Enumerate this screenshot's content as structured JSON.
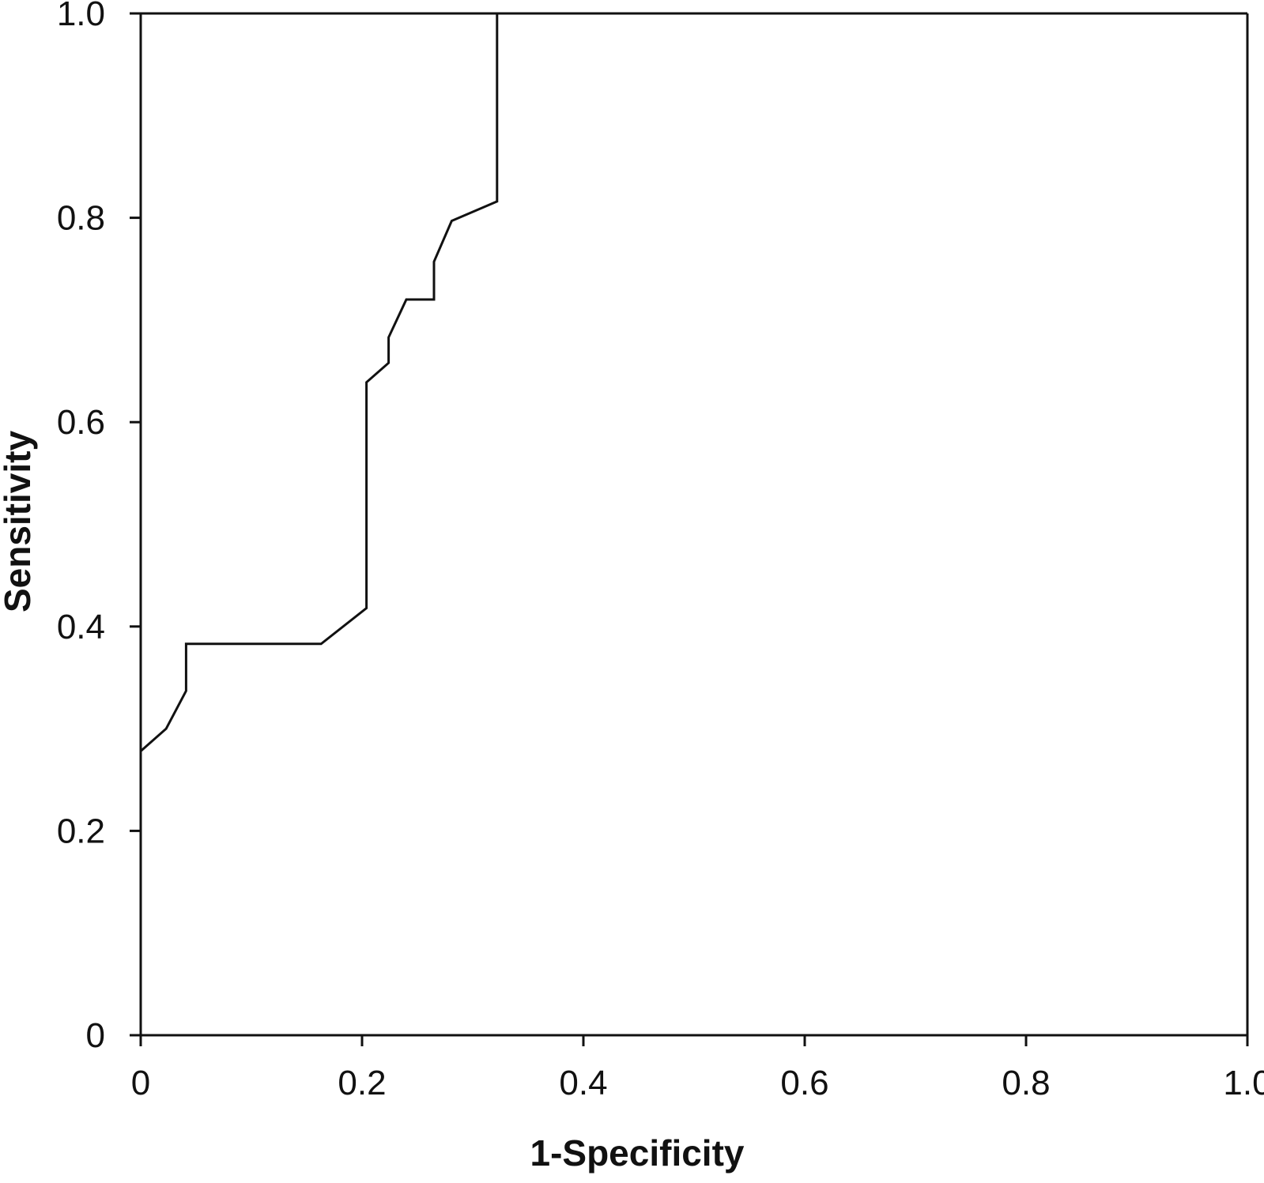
{
  "chart_data": {
    "type": "line",
    "title": "",
    "xlabel": "1-Specificity",
    "ylabel": "Sensitivity",
    "xlim": [
      0,
      1
    ],
    "ylim": [
      0,
      1
    ],
    "grid": false,
    "x_ticks": [
      0,
      0.2,
      0.4,
      0.6,
      0.8,
      1.0
    ],
    "x_tick_labels": [
      "0",
      "0.2",
      "0.4",
      "0.6",
      "0.8",
      "1.0"
    ],
    "y_ticks": [
      0,
      0.2,
      0.4,
      0.6,
      0.8,
      1.0
    ],
    "y_tick_labels": [
      "0",
      "0.2",
      "0.4",
      "0.6",
      "0.8",
      "1.0"
    ],
    "series": [
      {
        "x": [
          0,
          0.023,
          0.041,
          0.041,
          0.163,
          0.204,
          0.204,
          0.224,
          0.224,
          0.24,
          0.265,
          0.265,
          0.281,
          0.322,
          0.322
        ],
        "y": [
          0.278,
          0.3,
          0.337,
          0.383,
          0.383,
          0.418,
          0.639,
          0.658,
          0.683,
          0.72,
          0.72,
          0.757,
          0.797,
          0.816,
          1.0
        ]
      }
    ]
  }
}
